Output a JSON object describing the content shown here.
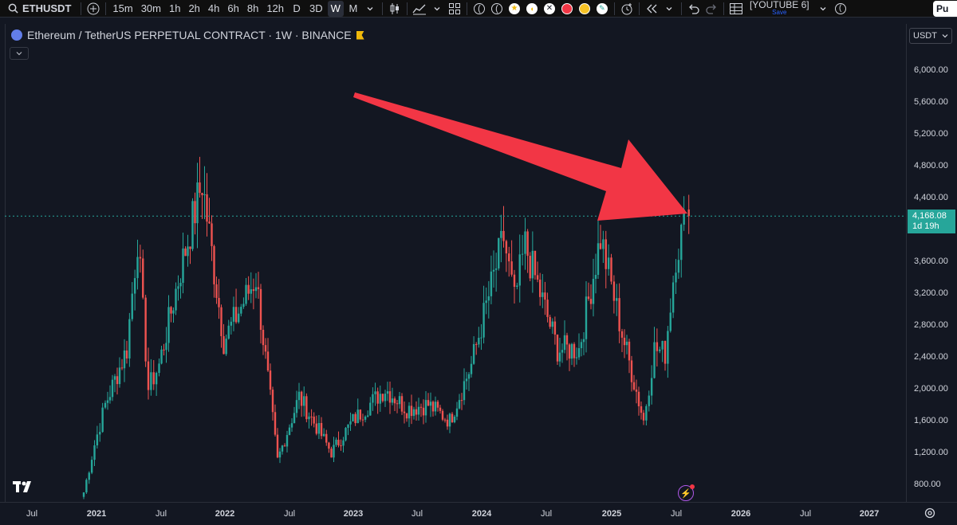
{
  "toolbar": {
    "symbol": "ETHUSDT",
    "intervals": [
      "15m",
      "30m",
      "1h",
      "2h",
      "4h",
      "6h",
      "8h",
      "12h",
      "D",
      "3D",
      "W",
      "M"
    ],
    "active_interval": "W",
    "layout_name": "[YOUTUBE 6]",
    "save_label": "Save",
    "publish_label": "Pu",
    "brace_left": "(",
    "brace_right": "("
  },
  "legend": {
    "title": "Ethereum / TetherUS PERPETUAL CONTRACT · 1W · BINANCE"
  },
  "price_axis": {
    "currency": "USDT",
    "labels": [
      "6,000.00",
      "5,600.00",
      "5,200.00",
      "4,800.00",
      "4,400.00",
      "3,600.00",
      "3,200.00",
      "2,800.00",
      "2,400.00",
      "2,000.00",
      "1,600.00",
      "1,200.00",
      "800.00"
    ],
    "current_price": "4,168.08",
    "countdown": "1d 19h"
  },
  "time_axis": {
    "labels": [
      {
        "text": "Jul",
        "year": false
      },
      {
        "text": "2021",
        "year": true
      },
      {
        "text": "Jul",
        "year": false
      },
      {
        "text": "2022",
        "year": true
      },
      {
        "text": "Jul",
        "year": false
      },
      {
        "text": "2023",
        "year": true
      },
      {
        "text": "Jul",
        "year": false
      },
      {
        "text": "2024",
        "year": true
      },
      {
        "text": "Jul",
        "year": false
      },
      {
        "text": "2025",
        "year": true
      },
      {
        "text": "Jul",
        "year": false
      },
      {
        "text": "2026",
        "year": true
      },
      {
        "text": "Jul",
        "year": false
      },
      {
        "text": "2027",
        "year": true
      }
    ]
  },
  "colors": {
    "up": "#26a69a",
    "down": "#ef5350",
    "arrow": "#f23645",
    "current_line": "#26a69a"
  },
  "chart_data": {
    "type": "candlestick",
    "interval": "1W",
    "series_anchor_closes": [
      {
        "date": "2020-12",
        "close": 700
      },
      {
        "date": "2021-01",
        "close": 1300
      },
      {
        "date": "2021-02",
        "close": 1800
      },
      {
        "date": "2021-04",
        "close": 2500
      },
      {
        "date": "2021-05",
        "close": 3900
      },
      {
        "date": "2021-06",
        "close": 2000
      },
      {
        "date": "2021-07",
        "close": 2300
      },
      {
        "date": "2021-09",
        "close": 3500
      },
      {
        "date": "2021-11",
        "close": 4600
      },
      {
        "date": "2022-01",
        "close": 2600
      },
      {
        "date": "2022-04",
        "close": 3400
      },
      {
        "date": "2022-06",
        "close": 1100
      },
      {
        "date": "2022-08",
        "close": 1900
      },
      {
        "date": "2022-11",
        "close": 1200
      },
      {
        "date": "2023-01",
        "close": 1600
      },
      {
        "date": "2023-04",
        "close": 2000
      },
      {
        "date": "2023-06",
        "close": 1750
      },
      {
        "date": "2023-08",
        "close": 1800
      },
      {
        "date": "2023-10",
        "close": 1600
      },
      {
        "date": "2023-12",
        "close": 2300
      },
      {
        "date": "2024-03",
        "close": 3900
      },
      {
        "date": "2024-04",
        "close": 3100
      },
      {
        "date": "2024-05",
        "close": 3800
      },
      {
        "date": "2024-08",
        "close": 2500
      },
      {
        "date": "2024-10",
        "close": 2500
      },
      {
        "date": "2024-12",
        "close": 3900
      },
      {
        "date": "2025-01",
        "close": 3300
      },
      {
        "date": "2025-02",
        "close": 2700
      },
      {
        "date": "2025-04",
        "close": 1600
      },
      {
        "date": "2025-05",
        "close": 2500
      },
      {
        "date": "2025-06",
        "close": 2450
      },
      {
        "date": "2025-07",
        "close": 3700
      },
      {
        "date": "2025-08",
        "close": 4168.08
      }
    ],
    "current_price": 4168.08,
    "ylim": [
      800,
      6200
    ]
  }
}
